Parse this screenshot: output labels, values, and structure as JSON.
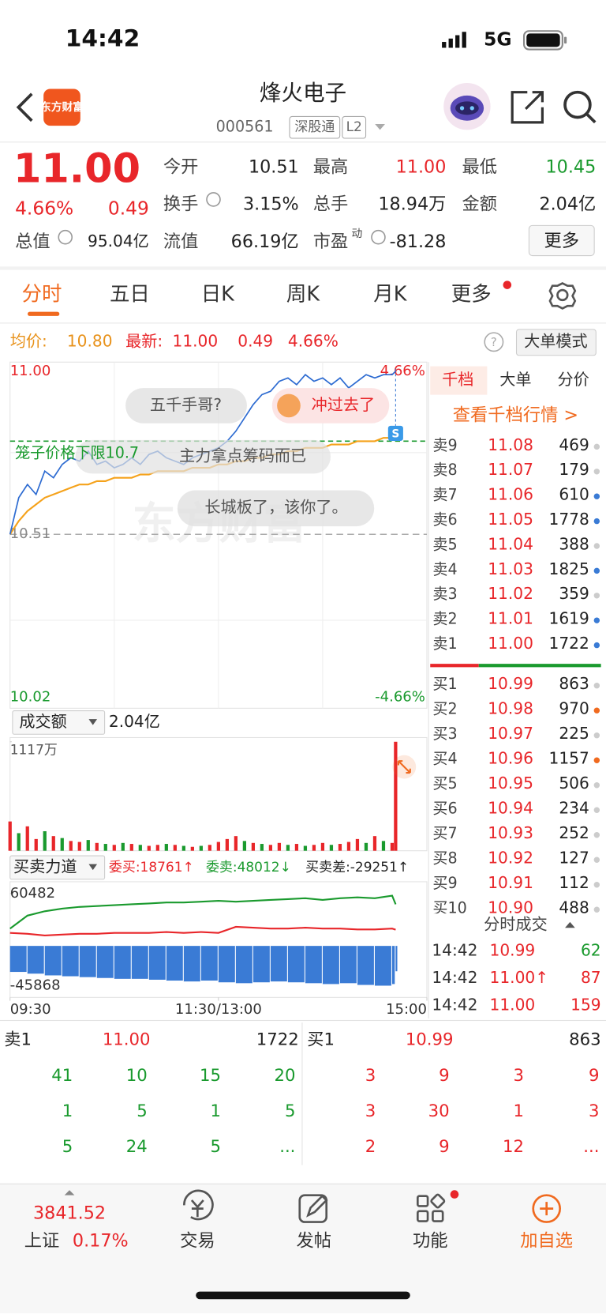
{
  "status_bar": {
    "time": "14:42",
    "network": "5G"
  },
  "header": {
    "logo": "东方财富",
    "title": "烽火电子",
    "code": "000561",
    "tags": [
      "深股通",
      "L2"
    ]
  },
  "quote": {
    "price": "11.00",
    "change_pct": "4.66%",
    "change": "0.49",
    "more": "更多",
    "fields": [
      {
        "label": "今开",
        "value": "10.51",
        "color": "#222222"
      },
      {
        "label": "最高",
        "value": "11.00",
        "color": "#e8262a"
      },
      {
        "label": "最低",
        "value": "10.45",
        "color": "#1a9a2e"
      },
      {
        "label": "换手",
        "value": "3.15%",
        "color": "#222222"
      },
      {
        "label": "总手",
        "value": "18.94万",
        "color": "#222222"
      },
      {
        "label": "金额",
        "value": "2.04亿",
        "color": "#222222"
      },
      {
        "label": "总值",
        "value": "95.04亿",
        "color": "#222222"
      },
      {
        "label": "流值",
        "value": "66.19亿",
        "color": "#222222"
      },
      {
        "label": "市盈",
        "sup": "动",
        "value": "-81.28",
        "color": "#222222"
      }
    ]
  },
  "tabs": [
    "分时",
    "五日",
    "日K",
    "周K",
    "月K",
    "更多"
  ],
  "info_bar": {
    "avg_label": "均价:",
    "avg": "10.80",
    "last_label": "最新:",
    "last": "11.00",
    "change": "0.49",
    "change_pct": "4.66%",
    "button": "大单模式"
  },
  "intraday_chart": {
    "type": "line",
    "watermark": "东方财富",
    "xlim": [
      0,
      240
    ],
    "xticks": [
      {
        "value": 0,
        "label": "09:30"
      },
      {
        "value": 120,
        "label": "11:30/13:00"
      },
      {
        "value": 240,
        "label": "15:00"
      }
    ],
    "ylim": [
      10.02,
      11.0
    ],
    "yticks": [
      {
        "value": 11.0,
        "label": "11.00"
      },
      10.51,
      10.02
    ],
    "y2lim": [
      -4.66,
      4.66
    ],
    "y2ticks": [
      {
        "value": 4.66,
        "label": "4.66%"
      },
      {
        "value": -4.66,
        "label": "-4.66%"
      }
    ],
    "reference_line": 10.79,
    "annotations": [
      "五千手哥?",
      "冲过去了",
      "笼子价格下限10.7",
      "主力拿点筹码而已",
      "长城板了，该你了。"
    ],
    "x": [
      0,
      5,
      10,
      15,
      20,
      25,
      30,
      35,
      40,
      45,
      50,
      55,
      60,
      65,
      70,
      75,
      80,
      85,
      90,
      95,
      100,
      105,
      110,
      115,
      120,
      125,
      130,
      135,
      140,
      145,
      150,
      155,
      160,
      165,
      170,
      175,
      180,
      185,
      190,
      195,
      200,
      205,
      210,
      215,
      220,
      222
    ],
    "series": [
      {
        "color": "#2d6bd1",
        "values": [
          10.51,
          10.62,
          10.66,
          10.63,
          10.7,
          10.68,
          10.72,
          10.74,
          10.73,
          10.76,
          10.72,
          10.73,
          10.71,
          10.72,
          10.74,
          10.72,
          10.75,
          10.76,
          10.74,
          10.73,
          10.72,
          10.74,
          10.75,
          10.76,
          10.77,
          10.79,
          10.82,
          10.86,
          10.9,
          10.93,
          10.94,
          10.97,
          10.98,
          10.96,
          10.99,
          10.97,
          10.98,
          10.96,
          10.98,
          10.95,
          10.97,
          10.99,
          10.98,
          10.99,
          10.99,
          11.0
        ]
      },
      {
        "color": "#f5a21b",
        "values": [
          10.51,
          10.55,
          10.58,
          10.6,
          10.62,
          10.63,
          10.64,
          10.65,
          10.66,
          10.66,
          10.67,
          10.67,
          10.68,
          10.68,
          10.68,
          10.69,
          10.69,
          10.7,
          10.7,
          10.7,
          10.7,
          10.71,
          10.71,
          10.71,
          10.72,
          10.72,
          10.73,
          10.73,
          10.74,
          10.74,
          10.75,
          10.75,
          10.76,
          10.76,
          10.77,
          10.77,
          10.77,
          10.78,
          10.78,
          10.78,
          10.79,
          10.79,
          10.79,
          10.8,
          10.8,
          10.8
        ]
      }
    ]
  },
  "volume_chart": {
    "type": "bar",
    "title": "成交额",
    "total": "2.04亿",
    "ylim": [
      0,
      1117
    ],
    "yticks": [
      {
        "value": 1117,
        "label": "1117万"
      }
    ],
    "values": [
      300,
      180,
      250,
      120,
      200,
      150,
      130,
      100,
      90,
      110,
      80,
      70,
      60,
      80,
      70,
      60,
      50,
      60,
      70,
      60,
      50,
      40,
      50,
      60,
      90,
      120,
      150,
      100,
      80,
      70,
      60,
      80,
      60,
      70,
      50,
      60,
      80,
      60,
      70,
      90,
      120,
      80,
      150,
      100,
      80,
      1117
    ],
    "colors": [
      "#e8262a",
      "#1a9a2e",
      "#e8262a",
      "#e8262a",
      "#1a9a2e",
      "#e8262a",
      "#1a9a2e",
      "#e8262a",
      "#e8262a",
      "#1a9a2e",
      "#e8262a",
      "#1a9a2e",
      "#e8262a",
      "#1a9a2e",
      "#e8262a",
      "#1a9a2e",
      "#e8262a",
      "#e8262a",
      "#1a9a2e",
      "#e8262a",
      "#1a9a2e",
      "#e8262a",
      "#1a9a2e",
      "#e8262a",
      "#e8262a",
      "#e8262a",
      "#e8262a",
      "#1a9a2e",
      "#e8262a",
      "#1a9a2e",
      "#e8262a",
      "#e8262a",
      "#1a9a2e",
      "#e8262a",
      "#1a9a2e",
      "#e8262a",
      "#e8262a",
      "#1a9a2e",
      "#e8262a",
      "#e8262a",
      "#e8262a",
      "#1a9a2e",
      "#e8262a",
      "#1a9a2e",
      "#e8262a",
      "#e8262a"
    ]
  },
  "power_chart": {
    "type": "bar-line",
    "title": "买卖力道",
    "labels": [
      "委买:18761↑",
      "委卖:48012↓",
      "买卖差:-29251↑"
    ],
    "ylim": [
      -45868,
      60482
    ],
    "yticks": [
      60482,
      -45868
    ],
    "x": [
      0,
      10,
      20,
      30,
      40,
      50,
      60,
      70,
      80,
      90,
      100,
      110,
      120,
      130,
      140,
      150,
      160,
      170,
      180,
      190,
      200,
      210,
      220,
      222
    ],
    "series": [
      {
        "type": "line",
        "color": "#1a9a2e",
        "values": [
          20000,
          35000,
          40000,
          43000,
          45000,
          46000,
          47000,
          48000,
          49000,
          50000,
          50000,
          51000,
          52000,
          51000,
          52000,
          53000,
          54000,
          55000,
          53000,
          55000,
          56000,
          55000,
          58000,
          48012
        ]
      },
      {
        "type": "line",
        "color": "#e8262a",
        "values": [
          15000,
          14000,
          12000,
          13000,
          14000,
          14000,
          15000,
          15000,
          15000,
          16000,
          15000,
          16000,
          15000,
          22000,
          21000,
          20000,
          20000,
          21000,
          20000,
          20000,
          19000,
          19000,
          20000,
          18761
        ]
      },
      {
        "type": "bar",
        "color": "#3a7bd5",
        "values": [
          -30000,
          -32000,
          -34000,
          -35000,
          -36000,
          -37000,
          -38000,
          -38000,
          -39000,
          -40000,
          -41000,
          -40000,
          -42000,
          -43000,
          -42000,
          -41000,
          -42000,
          -43000,
          -44000,
          -43000,
          -45000,
          -45868,
          -44000,
          -29251
        ]
      }
    ]
  },
  "order_book": {
    "tabs": [
      "千档",
      "大单",
      "分价"
    ],
    "link": "查看千档行情 >",
    "asks": [
      {
        "label": "卖9",
        "price": "11.08",
        "volume": "469",
        "dot": "#cccccc"
      },
      {
        "label": "卖8",
        "price": "11.07",
        "volume": "179",
        "dot": "#cccccc"
      },
      {
        "label": "卖7",
        "price": "11.06",
        "volume": "610",
        "dot": "#3a7bd5"
      },
      {
        "label": "卖6",
        "price": "11.05",
        "volume": "1778",
        "dot": "#3a7bd5"
      },
      {
        "label": "卖5",
        "price": "11.04",
        "volume": "388",
        "dot": "#cccccc"
      },
      {
        "label": "卖4",
        "price": "11.03",
        "volume": "1825",
        "dot": "#3a7bd5"
      },
      {
        "label": "卖3",
        "price": "11.02",
        "volume": "359",
        "dot": "#cccccc"
      },
      {
        "label": "卖2",
        "price": "11.01",
        "volume": "1619",
        "dot": "#3a7bd5"
      },
      {
        "label": "卖1",
        "price": "11.00",
        "volume": "1722",
        "dot": "#3a7bd5"
      }
    ],
    "bids": [
      {
        "label": "买1",
        "price": "10.99",
        "volume": "863",
        "dot": "#cccccc"
      },
      {
        "label": "买2",
        "price": "10.98",
        "volume": "970",
        "dot": "#f06a1f"
      },
      {
        "label": "买3",
        "price": "10.97",
        "volume": "225",
        "dot": "#cccccc"
      },
      {
        "label": "买4",
        "price": "10.96",
        "volume": "1157",
        "dot": "#f06a1f"
      },
      {
        "label": "买5",
        "price": "10.95",
        "volume": "506",
        "dot": "#cccccc"
      },
      {
        "label": "买6",
        "price": "10.94",
        "volume": "234",
        "dot": "#cccccc"
      },
      {
        "label": "买7",
        "price": "10.93",
        "volume": "252",
        "dot": "#cccccc"
      },
      {
        "label": "买8",
        "price": "10.92",
        "volume": "127",
        "dot": "#cccccc"
      },
      {
        "label": "买9",
        "price": "10.91",
        "volume": "112",
        "dot": "#cccccc"
      },
      {
        "label": "买10",
        "price": "10.90",
        "volume": "488",
        "dot": "#cccccc"
      }
    ]
  },
  "trades": {
    "title": "分时成交",
    "rows": [
      {
        "time": "14:42",
        "price": "10.99",
        "volume": "62",
        "color": "#1a9a2e"
      },
      {
        "time": "14:42",
        "price": "11.00↑",
        "volume": "87",
        "color": "#e8262a"
      },
      {
        "time": "14:42",
        "price": "11.00",
        "volume": "159",
        "color": "#e8262a"
      }
    ]
  },
  "queue": {
    "ask": {
      "label": "卖1",
      "price": "11.00",
      "volume": "1722",
      "rows": [
        [
          "41",
          "10",
          "15",
          "20"
        ],
        [
          "1",
          "5",
          "1",
          "5"
        ],
        [
          "5",
          "24",
          "5",
          "..."
        ]
      ]
    },
    "bid": {
      "label": "买1",
      "price": "10.99",
      "volume": "863",
      "rows": [
        [
          "3",
          "9",
          "3",
          "9"
        ],
        [
          "3",
          "30",
          "1",
          "3"
        ],
        [
          "2",
          "9",
          "12",
          "..."
        ]
      ]
    }
  },
  "bottom_bar": {
    "index_value": "3841.52",
    "index_name": "上证",
    "index_pct": "0.17%",
    "items": [
      "交易",
      "发帖",
      "功能",
      "加自选"
    ]
  }
}
